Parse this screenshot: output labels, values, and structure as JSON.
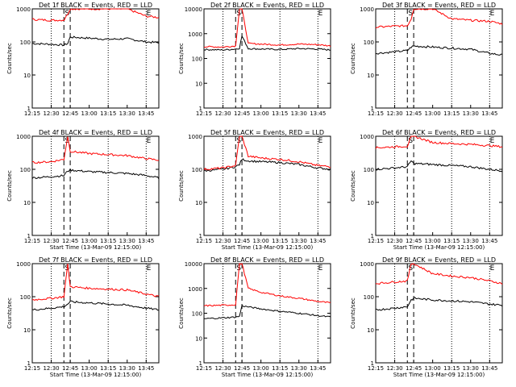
{
  "chart_data": [
    {
      "type": "line",
      "title": "Det 1f BLACK = Events, RED = LLD",
      "xlabel": "Start Time (13-Mar-09 12:15:00)",
      "ylabel": "Counts/sec",
      "yscale": "log",
      "ylim": [
        1,
        1000
      ],
      "xticks": [
        "12:15",
        "12:30",
        "12:45",
        "13:00",
        "13:15",
        "13:30",
        "13:45"
      ],
      "markers": [
        "S",
        "E"
      ],
      "x": [
        0,
        15,
        25,
        28,
        30,
        45,
        60,
        75,
        90,
        100
      ],
      "series": [
        {
          "name": "BLACK = Events",
          "color": "#000000",
          "values": [
            90,
            85,
            80,
            90,
            140,
            130,
            120,
            125,
            100,
            95
          ]
        },
        {
          "name": "RED = LLD",
          "color": "#ff0000",
          "values": [
            480,
            450,
            460,
            700,
            1000,
            1000,
            1000,
            1000,
            600,
            550
          ]
        }
      ],
      "xlabel_visible": false
    },
    {
      "type": "line",
      "title": "Det 2f BLACK = Events, RED = LLD",
      "xlabel": "Start Time (13-Mar-09 12:15:00)",
      "ylabel": "Counts/sec",
      "yscale": "log",
      "ylim": [
        1,
        10000
      ],
      "xticks": [
        "12:15",
        "12:30",
        "12:45",
        "13:00",
        "13:15",
        "13:30",
        "13:45"
      ],
      "markers": [
        "S",
        "E"
      ],
      "x": [
        0,
        15,
        25,
        28,
        30,
        35,
        45,
        60,
        75,
        90,
        100
      ],
      "series": [
        {
          "name": "BLACK = Events",
          "color": "#000000",
          "values": [
            230,
            220,
            240,
            260,
            800,
            250,
            240,
            230,
            250,
            240,
            220
          ]
        },
        {
          "name": "RED = LLD",
          "color": "#ff0000",
          "values": [
            300,
            290,
            320,
            10000,
            10000,
            400,
            380,
            350,
            380,
            360,
            320
          ]
        }
      ],
      "xlabel_visible": false
    },
    {
      "type": "line",
      "title": "Det 3f BLACK = Events, RED = LLD",
      "xlabel": "Start Time (13-Mar-09 12:15:00)",
      "ylabel": "Counts/sec",
      "yscale": "log",
      "ylim": [
        1,
        1000
      ],
      "xticks": [
        "12:15",
        "12:30",
        "12:45",
        "13:00",
        "13:15",
        "13:30",
        "13:45"
      ],
      "markers": [
        "S",
        "E"
      ],
      "x": [
        0,
        15,
        25,
        28,
        30,
        45,
        60,
        75,
        90,
        100
      ],
      "series": [
        {
          "name": "BLACK = Events",
          "color": "#000000",
          "values": [
            45,
            50,
            55,
            70,
            75,
            70,
            65,
            60,
            45,
            40
          ]
        },
        {
          "name": "RED = LLD",
          "color": "#ff0000",
          "values": [
            280,
            300,
            310,
            500,
            1000,
            1000,
            500,
            450,
            420,
            350
          ]
        }
      ],
      "xlabel_visible": false
    },
    {
      "type": "line",
      "title": "Det 4f BLACK = Events, RED = LLD",
      "xlabel": "Start Time (13-Mar-09 12:15:00)",
      "ylabel": "Counts/sec",
      "yscale": "log",
      "ylim": [
        1,
        1000
      ],
      "xticks": [
        "12:15",
        "12:30",
        "12:45",
        "13:00",
        "13:15",
        "13:30",
        "13:45"
      ],
      "markers": [
        "S",
        "E"
      ],
      "x": [
        0,
        15,
        25,
        28,
        30,
        45,
        60,
        75,
        90,
        100
      ],
      "series": [
        {
          "name": "BLACK = Events",
          "color": "#000000",
          "values": [
            55,
            60,
            65,
            90,
            95,
            85,
            80,
            75,
            65,
            55
          ]
        },
        {
          "name": "RED = LLD",
          "color": "#ff0000",
          "values": [
            160,
            170,
            200,
            1000,
            350,
            300,
            280,
            260,
            210,
            190
          ]
        }
      ],
      "xlabel_visible": true
    },
    {
      "type": "line",
      "title": "Det 5f BLACK = Events, RED = LLD",
      "xlabel": "Start Time (13-Mar-09 12:15:00)",
      "ylabel": "Counts/sec",
      "yscale": "log",
      "ylim": [
        1,
        1000
      ],
      "xticks": [
        "12:15",
        "12:30",
        "12:45",
        "13:00",
        "13:15",
        "13:30",
        "13:45"
      ],
      "markers": [
        "S",
        "E"
      ],
      "x": [
        0,
        15,
        25,
        28,
        30,
        35,
        45,
        60,
        75,
        90,
        100
      ],
      "series": [
        {
          "name": "BLACK = Events",
          "color": "#000000",
          "values": [
            90,
            100,
            120,
            140,
            200,
            180,
            170,
            160,
            140,
            110,
            100
          ]
        },
        {
          "name": "RED = LLD",
          "color": "#ff0000",
          "values": [
            100,
            110,
            130,
            1000,
            1000,
            250,
            220,
            200,
            170,
            130,
            120
          ]
        }
      ],
      "xlabel_visible": true
    },
    {
      "type": "line",
      "title": "Det 6f BLACK = Events, RED = LLD",
      "xlabel": "Start Time (13-Mar-09 12:15:00)",
      "ylabel": "Counts/sec",
      "yscale": "log",
      "ylim": [
        1,
        1000
      ],
      "xticks": [
        "12:15",
        "12:30",
        "12:45",
        "13:00",
        "13:15",
        "13:30",
        "13:45"
      ],
      "markers": [
        "S",
        "E"
      ],
      "x": [
        0,
        15,
        25,
        28,
        30,
        45,
        60,
        75,
        90,
        100
      ],
      "series": [
        {
          "name": "BLACK = Events",
          "color": "#000000",
          "values": [
            100,
            110,
            120,
            180,
            150,
            140,
            130,
            120,
            100,
            90
          ]
        },
        {
          "name": "RED = LLD",
          "color": "#ff0000",
          "values": [
            450,
            480,
            500,
            1000,
            1000,
            650,
            600,
            570,
            520,
            480
          ]
        }
      ],
      "xlabel_visible": true
    },
    {
      "type": "line",
      "title": "Det 7f BLACK = Events, RED = LLD",
      "xlabel": "Start Time (13-Mar-09 12:15:00)",
      "ylabel": "Counts/sec",
      "yscale": "log",
      "ylim": [
        1,
        1000
      ],
      "xticks": [
        "12:15",
        "12:30",
        "12:45",
        "13:00",
        "13:15",
        "13:30",
        "13:45"
      ],
      "markers": [
        "S",
        "E"
      ],
      "x": [
        0,
        15,
        25,
        28,
        30,
        45,
        60,
        75,
        90,
        100
      ],
      "series": [
        {
          "name": "BLACK = Events",
          "color": "#000000",
          "values": [
            40,
            45,
            50,
            60,
            70,
            65,
            60,
            55,
            45,
            40
          ]
        },
        {
          "name": "RED = LLD",
          "color": "#ff0000",
          "values": [
            80,
            90,
            100,
            1000,
            200,
            180,
            170,
            160,
            120,
            100
          ]
        }
      ],
      "xlabel_visible": true
    },
    {
      "type": "line",
      "title": "Det 8f BLACK = Events, RED = LLD",
      "xlabel": "Start Time (13-Mar-09 12:15:00)",
      "ylabel": "Counts/sec",
      "yscale": "log",
      "ylim": [
        1,
        10000
      ],
      "xticks": [
        "12:15",
        "12:30",
        "12:45",
        "13:00",
        "13:15",
        "13:30",
        "13:45"
      ],
      "markers": [
        "S",
        "E"
      ],
      "x": [
        0,
        15,
        25,
        28,
        30,
        35,
        45,
        60,
        75,
        90,
        100
      ],
      "series": [
        {
          "name": "BLACK = Events",
          "color": "#000000",
          "values": [
            60,
            65,
            70,
            75,
            200,
            180,
            150,
            120,
            100,
            80,
            70
          ]
        },
        {
          "name": "RED = LLD",
          "color": "#ff0000",
          "values": [
            200,
            210,
            220,
            10000,
            10000,
            1000,
            700,
            500,
            400,
            300,
            260
          ]
        }
      ],
      "xlabel_visible": true
    },
    {
      "type": "line",
      "title": "Det 9f BLACK = Events, RED = LLD",
      "xlabel": "Start Time (13-Mar-09 12:15:00)",
      "ylabel": "Counts/sec",
      "yscale": "log",
      "ylim": [
        1,
        1000
      ],
      "xticks": [
        "12:15",
        "12:30",
        "12:45",
        "13:00",
        "13:15",
        "13:30",
        "13:45"
      ],
      "markers": [
        "S",
        "E"
      ],
      "x": [
        0,
        15,
        25,
        28,
        30,
        45,
        60,
        75,
        90,
        100
      ],
      "series": [
        {
          "name": "BLACK = Events",
          "color": "#000000",
          "values": [
            40,
            45,
            50,
            80,
            90,
            80,
            75,
            70,
            60,
            55
          ]
        },
        {
          "name": "RED = LLD",
          "color": "#ff0000",
          "values": [
            250,
            280,
            300,
            1000,
            1000,
            500,
            420,
            380,
            300,
            250
          ]
        }
      ],
      "xlabel_visible": true
    }
  ]
}
